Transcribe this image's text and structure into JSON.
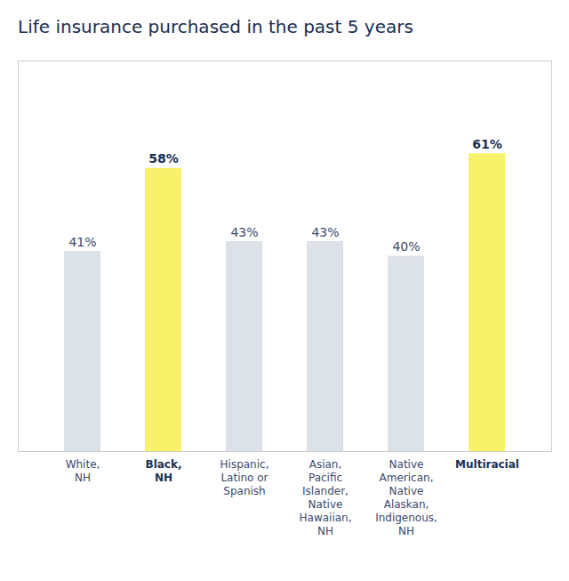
{
  "chart_data": {
    "type": "bar",
    "title": "Life insurance purchased in the past 5 years",
    "categories": [
      "White,\nNH",
      "Black,\nNH",
      "Hispanic,\nLatino or\nSpanish",
      "Asian,\nPacific\nIslander,\nNative\nHawaiian,\nNH",
      "Native\nAmerican,\nNative\nAlaskan,\nIndigenous,\nNH",
      "Multiracial"
    ],
    "values": [
      41,
      58,
      43,
      43,
      40,
      61
    ],
    "value_labels": [
      "41%",
      "58%",
      "43%",
      "43%",
      "40%",
      "61%"
    ],
    "colors": [
      "#dde1e8",
      "#f7f26a",
      "#dde1e8",
      "#dde1e8",
      "#dde1e8",
      "#f7f26a"
    ],
    "ylim": [
      0,
      80
    ],
    "data_labels": true,
    "tick_labels": "x",
    "grid": false
  }
}
